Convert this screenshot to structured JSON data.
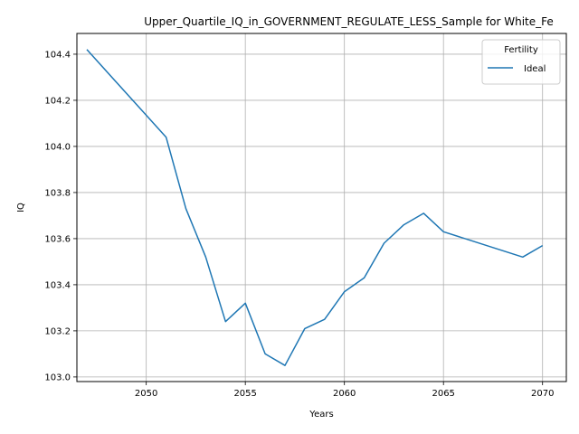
{
  "chart_data": {
    "type": "line",
    "title": "Upper_Quartile_IQ_in_GOVERNMENT_REGULATE_LESS_Sample for White_Fe",
    "xlabel": "Years",
    "ylabel": "IQ",
    "xlim": [
      2046.5,
      2071.2
    ],
    "ylim": [
      102.98,
      104.49
    ],
    "x_ticks": [
      2050,
      2055,
      2060,
      2065,
      2070
    ],
    "x_tick_labels": [
      "2050",
      "2055",
      "2060",
      "2065",
      "2070"
    ],
    "y_ticks": [
      103.0,
      103.2,
      103.4,
      103.6,
      103.8,
      104.0,
      104.2,
      104.4
    ],
    "y_tick_labels": [
      "103.0",
      "103.2",
      "103.4",
      "103.6",
      "103.8",
      "104.0",
      "104.2",
      "104.4"
    ],
    "grid": true,
    "legend": {
      "title": "Fertility",
      "placement": "top-right"
    },
    "series": [
      {
        "name": "Ideal",
        "color": "#1f77b4",
        "x": [
          2047,
          2051,
          2052,
          2053,
          2054,
          2055,
          2056,
          2057,
          2058,
          2059,
          2060,
          2061,
          2062,
          2063,
          2064,
          2065,
          2069,
          2070
        ],
        "y": [
          104.42,
          104.04,
          103.73,
          103.52,
          103.24,
          103.32,
          103.1,
          103.05,
          103.21,
          103.25,
          103.37,
          103.43,
          103.58,
          103.66,
          103.71,
          103.63,
          103.52,
          103.57
        ]
      }
    ]
  }
}
